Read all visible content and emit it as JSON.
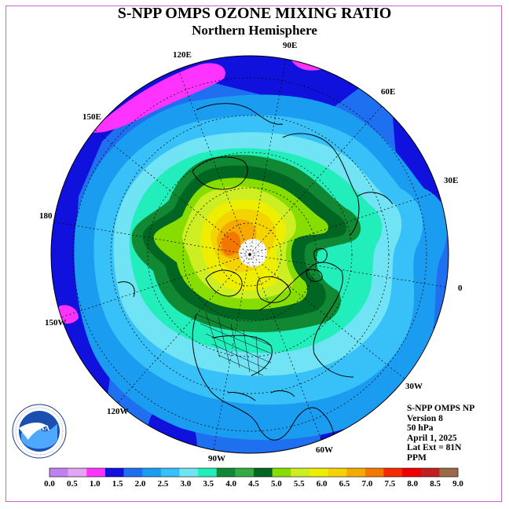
{
  "title": "S-NPP OMPS OZONE MIXING RATIO",
  "subtitle": "Northern Hemisphere",
  "info": {
    "product": "S-NPP OMPS NP",
    "version": "Version 8",
    "level": "50 hPa",
    "date": "April 1, 2025",
    "lat_ext": "Lat Ext = 81N",
    "units": "PPM"
  },
  "logo_text": "NATIONAL OCEANIC AND ATMOSPHERIC ADMINISTRATION · U.S. DEPARTMENT OF COMMERCE · NOAA",
  "longitude_labels": [
    "90E",
    "60E",
    "30E",
    "0",
    "30W",
    "60W",
    "90W",
    "120W",
    "150W",
    "180",
    "150E",
    "120E"
  ],
  "colorbar": {
    "colors": [
      "#c080f0",
      "#e4a4f4",
      "#ff33ff",
      "#1111dd",
      "#1f70f0",
      "#1a9cf0",
      "#38c0f8",
      "#70e4f4",
      "#22eebb",
      "#118833",
      "#33aa44",
      "#006622",
      "#88dd00",
      "#ccee22",
      "#eeee00",
      "#f4d400",
      "#f4aa00",
      "#f47800",
      "#f42a00",
      "#ee0000",
      "#c02020",
      "#9a6a4a"
    ],
    "ticks": [
      "0.0",
      "0.5",
      "1.0",
      "1.5",
      "2.0",
      "2.5",
      "3.0",
      "3.5",
      "4.0",
      "4.5",
      "5.0",
      "5.5",
      "6.0",
      "6.5",
      "7.0",
      "7.5",
      "8.0",
      "8.5",
      "9.0"
    ]
  },
  "chart_data": {
    "type": "heatmap",
    "title": "S-NPP OMPS OZONE MIXING RATIO",
    "subtitle": "Northern Hemisphere",
    "projection": "polar stereographic, north pole",
    "variable": "ozone mixing ratio",
    "units": "PPM",
    "pressure_level": "50 hPa",
    "date": "April 1, 2025",
    "lat_ext": "81N",
    "range": [
      0.0,
      9.0
    ],
    "step": 0.5
  }
}
